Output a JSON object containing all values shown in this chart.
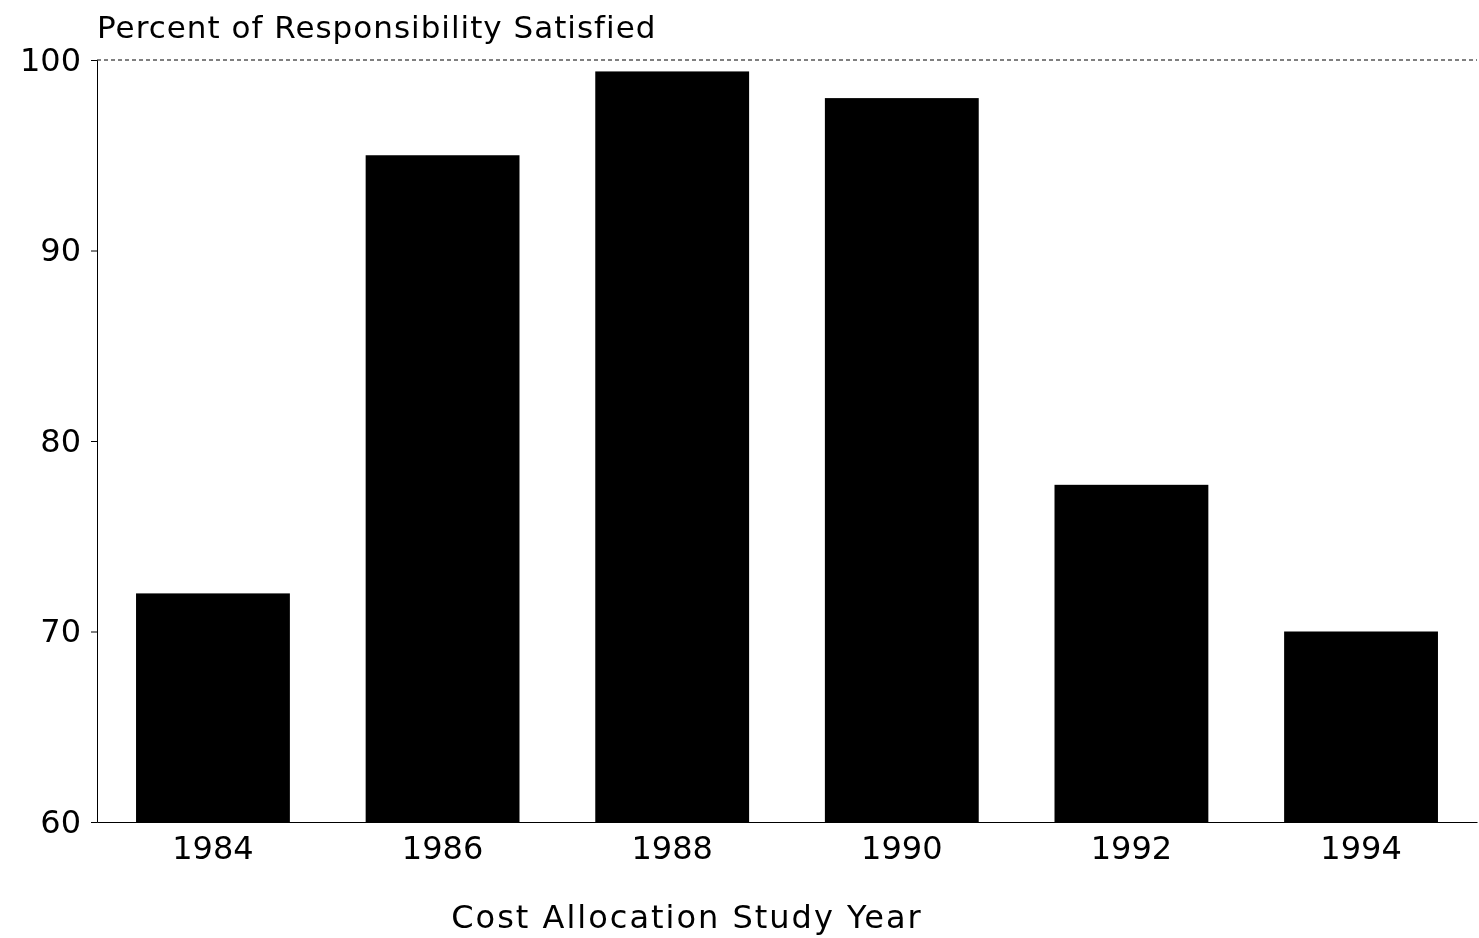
{
  "chart_data": {
    "type": "bar",
    "ylabel": "Percent of Responsibility Satisfied",
    "xlabel": "Cost Allocation Study Year",
    "categories": [
      "1984",
      "1986",
      "1988",
      "1990",
      "1992",
      "1994"
    ],
    "values": [
      72,
      95,
      99.4,
      98,
      77.7,
      70
    ],
    "color": "#000000",
    "ylim": [
      60,
      100
    ],
    "yticks": [
      60,
      70,
      80,
      90,
      100
    ],
    "grid": false
  }
}
